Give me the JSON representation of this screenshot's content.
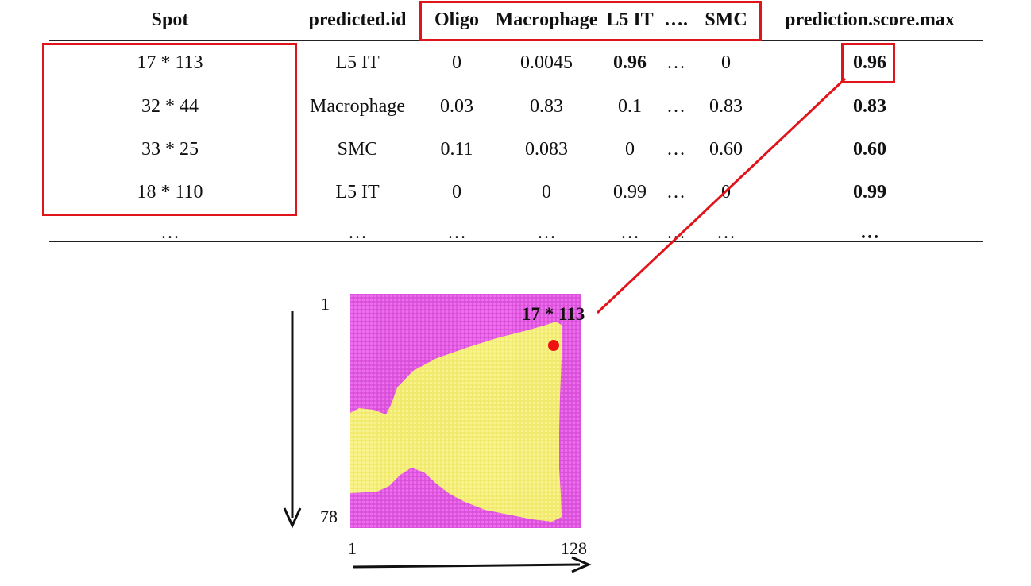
{
  "table": {
    "headers": [
      {
        "key": "spot",
        "label": "Spot"
      },
      {
        "key": "predicted_id",
        "label": "predicted.id"
      },
      {
        "key": "oligo",
        "label": "Oligo"
      },
      {
        "key": "macrophage",
        "label": "Macrophage"
      },
      {
        "key": "l5it",
        "label": "L5 IT"
      },
      {
        "key": "ellipsis",
        "label": "…."
      },
      {
        "key": "smc",
        "label": "SMC"
      },
      {
        "key": "score_max",
        "label": "prediction.score.max"
      }
    ],
    "rows": [
      {
        "spot": "17 * 113",
        "predicted_id": "L5 IT",
        "oligo": "0",
        "macrophage": "0.0045",
        "l5it": "0.96",
        "ellipsis": "…",
        "smc": "0",
        "score_max": "0.96"
      },
      {
        "spot": "32 * 44",
        "predicted_id": "Macrophage",
        "oligo": "0.03",
        "macrophage": "0.83",
        "l5it": "0.1",
        "ellipsis": "…",
        "smc": "0.83",
        "score_max": "0.83"
      },
      {
        "spot": "33 * 25",
        "predicted_id": "SMC",
        "oligo": "0.11",
        "macrophage": "0.083",
        "l5it": "0",
        "ellipsis": "…",
        "smc": "0.60",
        "score_max": "0.60"
      },
      {
        "spot": "18 * 110",
        "predicted_id": "L5 IT",
        "oligo": "0",
        "macrophage": "0",
        "l5it": "0.99",
        "ellipsis": "…",
        "smc": "0",
        "score_max": "0.99"
      },
      {
        "spot": "…",
        "predicted_id": "…",
        "oligo": "…",
        "macrophage": "…",
        "l5it": "…",
        "ellipsis": "…",
        "smc": "…",
        "score_max": "…"
      }
    ]
  },
  "plot": {
    "spot_label": "17 * 113",
    "y_start": "1",
    "y_end": "78",
    "x_start": "1",
    "x_end": "128",
    "colors": {
      "background_tissue": "#e45be4",
      "region": "#f4ef7a",
      "highlight_spot": "#ee1111",
      "callout": "#e0141b"
    }
  }
}
